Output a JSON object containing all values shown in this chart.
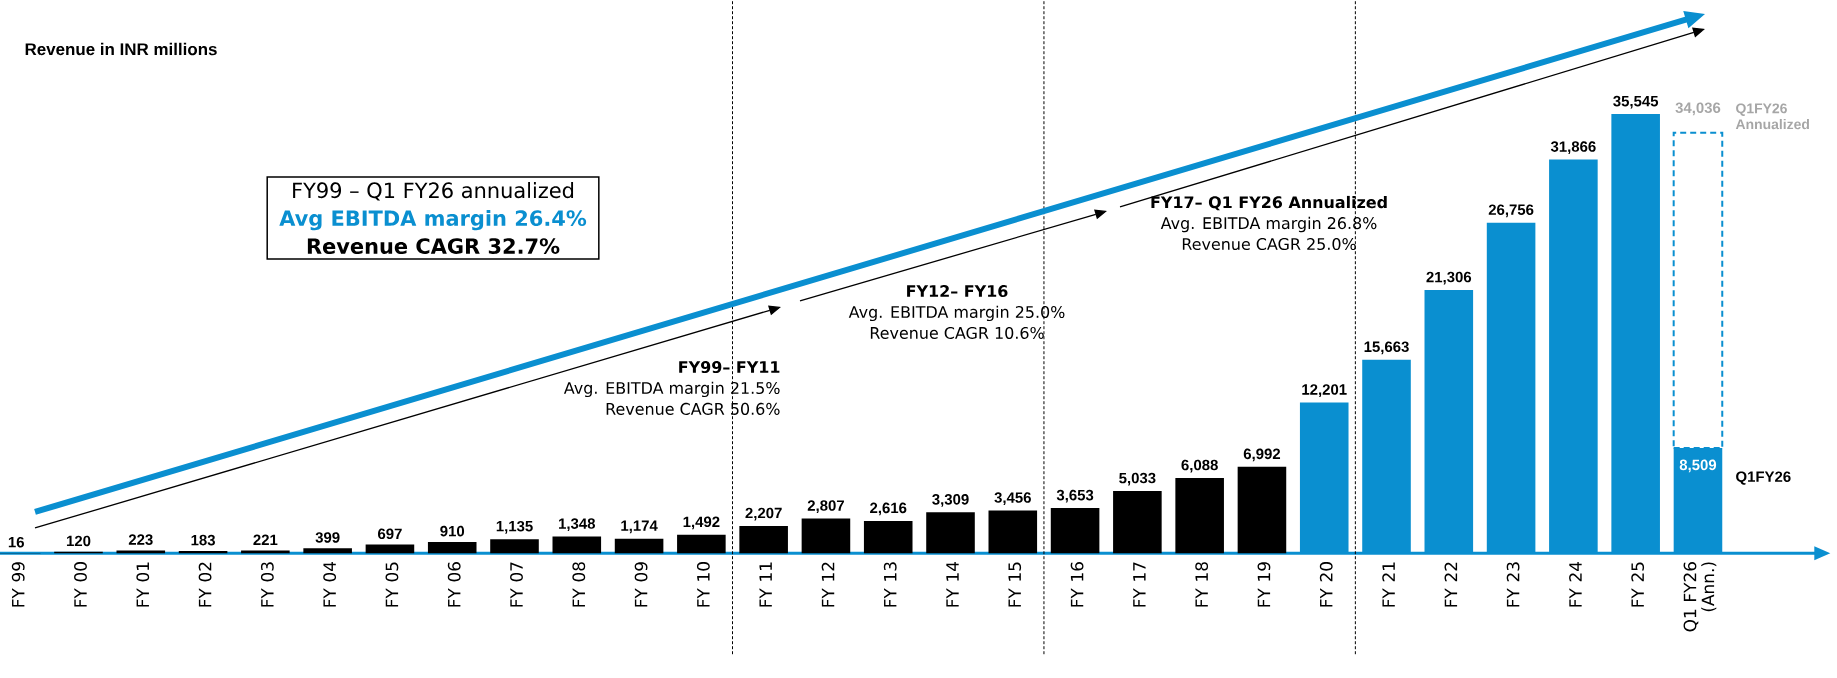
{
  "chart_data": {
    "type": "bar",
    "title": "Revenue in INR millions",
    "categories": [
      "FY 99",
      "FY 00",
      "FY 01",
      "FY 02",
      "FY 03",
      "FY 04",
      "FY 05",
      "FY 06",
      "FY 07",
      "FY 08",
      "FY 09",
      "FY 10",
      "FY 11",
      "FY 12",
      "FY 13",
      "FY 14",
      "FY 15",
      "FY 16",
      "FY 17",
      "FY 18",
      "FY 19",
      "FY 20",
      "FY 21",
      "FY 22",
      "FY 23",
      "FY 24",
      "FY 25",
      "Q1 FY26 (Ann.)"
    ],
    "stacked": true,
    "series": [
      {
        "color": "#000000",
        "values": [
          16,
          120,
          223,
          183,
          221,
          399,
          697,
          910,
          1135,
          1348,
          1174,
          1492,
          2207,
          2807,
          2616,
          3309,
          3456,
          3653,
          5033,
          6088,
          6992,
          null,
          null,
          null,
          null,
          null,
          null,
          null
        ],
        "value_labels": [
          "16",
          "120",
          "223",
          "183",
          "221",
          "399",
          "697",
          "910",
          "1,135",
          "1,348",
          "1,174",
          "1,492",
          "2,207",
          "2,807",
          "2,616",
          "3,309",
          "3,456",
          "3,653",
          "5,033",
          "6,088",
          "6,992",
          null,
          null,
          null,
          null,
          null,
          null,
          null
        ]
      },
      {
        "color": "#0a8fd0",
        "values": [
          null,
          null,
          null,
          null,
          null,
          null,
          null,
          null,
          null,
          null,
          null,
          null,
          null,
          null,
          null,
          null,
          null,
          null,
          null,
          null,
          null,
          12201,
          15663,
          21306,
          26756,
          31866,
          35545,
          null
        ],
        "value_labels": [
          null,
          null,
          null,
          null,
          null,
          null,
          null,
          null,
          null,
          null,
          null,
          null,
          null,
          null,
          null,
          null,
          null,
          null,
          null,
          null,
          null,
          "12,201",
          "15,663",
          "21,306",
          "26,756",
          "31,866",
          "35,545",
          null
        ]
      },
      {
        "name": "Q1FY26",
        "color": "#0a8fd0",
        "values": [
          null,
          null,
          null,
          null,
          null,
          null,
          null,
          null,
          null,
          null,
          null,
          null,
          null,
          null,
          null,
          null,
          null,
          null,
          null,
          null,
          null,
          null,
          null,
          null,
          null,
          null,
          null,
          8509
        ],
        "value_labels": [
          null,
          null,
          null,
          null,
          null,
          null,
          null,
          null,
          null,
          null,
          null,
          null,
          null,
          null,
          null,
          null,
          null,
          null,
          null,
          null,
          null,
          null,
          null,
          null,
          null,
          null,
          null,
          "8,509"
        ]
      },
      {
        "name": "Q1FY26 Annualized",
        "color": "#0a8fd0",
        "line_style": "dashed",
        "values": [
          null,
          null,
          null,
          null,
          null,
          null,
          null,
          null,
          null,
          null,
          null,
          null,
          null,
          null,
          null,
          null,
          null,
          null,
          null,
          null,
          null,
          null,
          null,
          null,
          null,
          null,
          null,
          25527
        ]
      }
    ],
    "totals": [
      null,
      null,
      null,
      null,
      null,
      null,
      null,
      null,
      null,
      null,
      null,
      null,
      null,
      null,
      null,
      null,
      null,
      null,
      null,
      null,
      null,
      null,
      null,
      null,
      null,
      null,
      null,
      "34,036"
    ],
    "annotations": [
      "FY99 – Q1 FY26 annualized",
      "Avg EBITDA margin 26.4%",
      "Revenue CAGR 32.7%",
      "FY99– FY11",
      "Avg. EBITDA margin 21.5%",
      "Revenue CAGR 50.6%",
      "FY12– FY16",
      "Avg. EBITDA margin 25.0%",
      "Revenue CAGR 10.6%",
      "FY17– Q1 FY26 Annualized",
      "Avg. EBITDA margin 26.8%",
      "Revenue CAGR 25.0%"
    ]
  }
}
